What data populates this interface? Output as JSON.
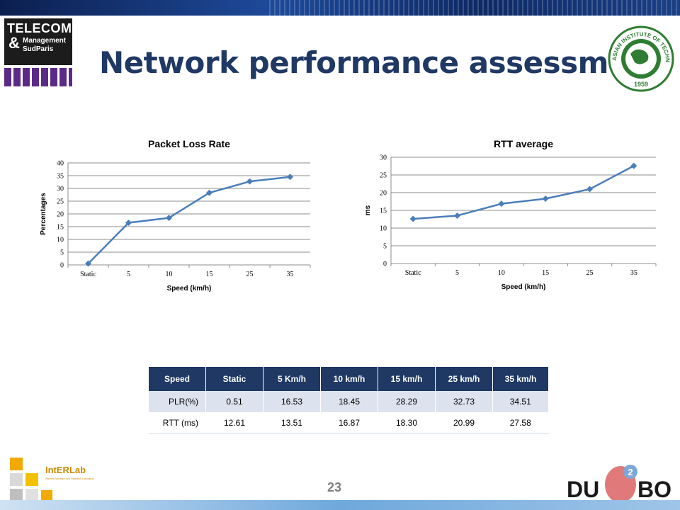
{
  "page": {
    "title": "Network performance assessment",
    "number": "23"
  },
  "logos": {
    "telecom": {
      "line1": "TELECOM",
      "amp": "&",
      "line2": "Management",
      "line3": "SudParis"
    },
    "ait": {
      "ring_text": "ASIAN INSTITUTE OF TECHNOLOGY",
      "year": "1959"
    },
    "interlab": {
      "name": "IntERLab",
      "subtitle": "Internet Education and Research Laboratory"
    },
    "dumbo": {
      "left": "DU",
      "right": "BO",
      "badge": "2"
    }
  },
  "colors": {
    "title": "#1f3864",
    "series": "#4a7ebb",
    "table_header": "#1f3864"
  },
  "chart_data": [
    {
      "type": "line",
      "title": "Packet Loss Rate",
      "xlabel": "Speed (km/h)",
      "ylabel": "Percentages",
      "categories": [
        "Static",
        "5",
        "10",
        "15",
        "25",
        "35"
      ],
      "values": [
        0.51,
        16.53,
        18.45,
        28.29,
        32.73,
        34.51
      ],
      "ylim": [
        0,
        40
      ],
      "yticks": [
        0,
        5,
        10,
        15,
        20,
        25,
        30,
        35,
        40
      ],
      "grid": true,
      "legend": "none"
    },
    {
      "type": "line",
      "title": "RTT average",
      "xlabel": "Speed (km/h)",
      "ylabel": "ms",
      "categories": [
        "Static",
        "5",
        "10",
        "15",
        "25",
        "35"
      ],
      "values": [
        12.61,
        13.51,
        16.87,
        18.3,
        20.99,
        27.58
      ],
      "ylim": [
        0,
        30
      ],
      "yticks": [
        0,
        5,
        10,
        15,
        20,
        25,
        30
      ],
      "grid": true,
      "legend": "none"
    }
  ],
  "table": {
    "headers": [
      "Speed",
      "Static",
      "5 Km/h",
      "10 km/h",
      "15 km/h",
      "25 km/h",
      "35 km/h"
    ],
    "rows": [
      [
        "PLR(%)",
        "0.51",
        "16.53",
        "18.45",
        "28.29",
        "32.73",
        "34.51"
      ],
      [
        "RTT (ms)",
        "12.61",
        "13.51",
        "16.87",
        "18.30",
        "20.99",
        "27.58"
      ]
    ]
  }
}
